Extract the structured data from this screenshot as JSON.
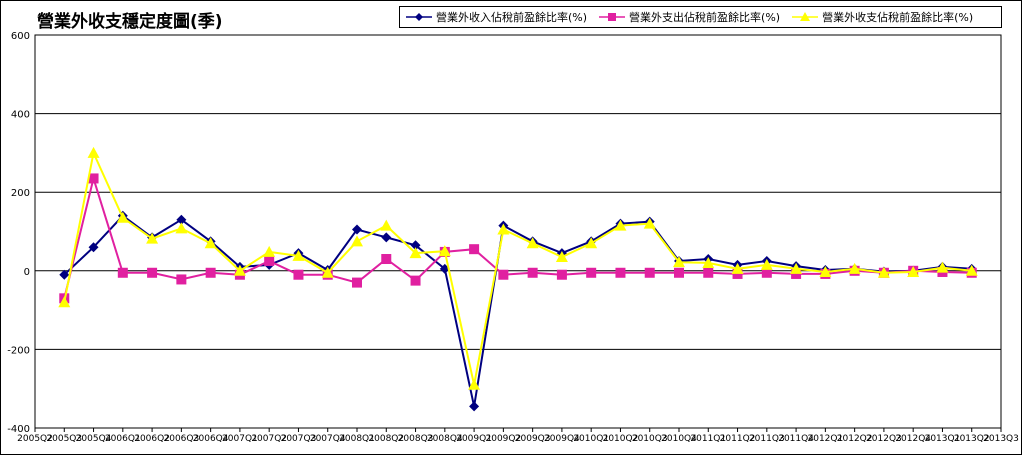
{
  "chart_data": {
    "type": "line",
    "title": "營業外收支穩定度圖(季)",
    "xlabel": "",
    "ylabel": "",
    "ylim": [
      -400,
      600
    ],
    "yticks": [
      600,
      400,
      200,
      0,
      -200,
      -400
    ],
    "grid": "horizontal",
    "legend_position": "top-right",
    "categories": [
      "2005Q2",
      "2005Q3",
      "2005Q4",
      "2006Q1",
      "2006Q2",
      "2006Q3",
      "2006Q4",
      "2007Q1",
      "2007Q2",
      "2007Q3",
      "2007Q4",
      "2008Q1",
      "2008Q2",
      "2008Q3",
      "2008Q4",
      "2009Q1",
      "2009Q2",
      "2009Q3",
      "2009Q4",
      "2010Q1",
      "2010Q2",
      "2010Q3",
      "2010Q4",
      "2011Q1",
      "2011Q2",
      "2011Q3",
      "2011Q4",
      "2012Q1",
      "2012Q2",
      "2012Q3",
      "2012Q4",
      "2013Q1",
      "2013Q2",
      "2013Q3"
    ],
    "series": [
      {
        "name": "營業外收入佔稅前盈餘比率(%)",
        "color": "#000080",
        "marker": "diamond",
        "values": [
          null,
          -10,
          60,
          140,
          85,
          130,
          75,
          10,
          15,
          45,
          2,
          105,
          85,
          65,
          5,
          -345,
          115,
          75,
          45,
          75,
          120,
          125,
          25,
          30,
          15,
          25,
          12,
          2,
          5,
          -2,
          0,
          10,
          5,
          null
        ]
      },
      {
        "name": "營業外支出佔稅前盈餘比率(%)",
        "color": "#E020A0",
        "marker": "square",
        "values": [
          null,
          -70,
          235,
          -5,
          -5,
          -22,
          -5,
          -10,
          25,
          -10,
          -10,
          -30,
          30,
          -25,
          48,
          55,
          -10,
          -5,
          -10,
          -5,
          -5,
          -5,
          -5,
          -5,
          -8,
          -5,
          -8,
          -8,
          0,
          -5,
          0,
          -3,
          -5,
          null
        ]
      },
      {
        "name": "營業外收支佔稅前盈餘比率(%)",
        "color": "#FFFF00",
        "marker": "triangle",
        "values": [
          null,
          -80,
          300,
          135,
          82,
          108,
          70,
          0,
          48,
          38,
          -5,
          75,
          115,
          45,
          50,
          -290,
          105,
          70,
          35,
          70,
          115,
          120,
          22,
          20,
          5,
          15,
          5,
          -3,
          5,
          -5,
          -3,
          8,
          0,
          null
        ]
      }
    ]
  }
}
